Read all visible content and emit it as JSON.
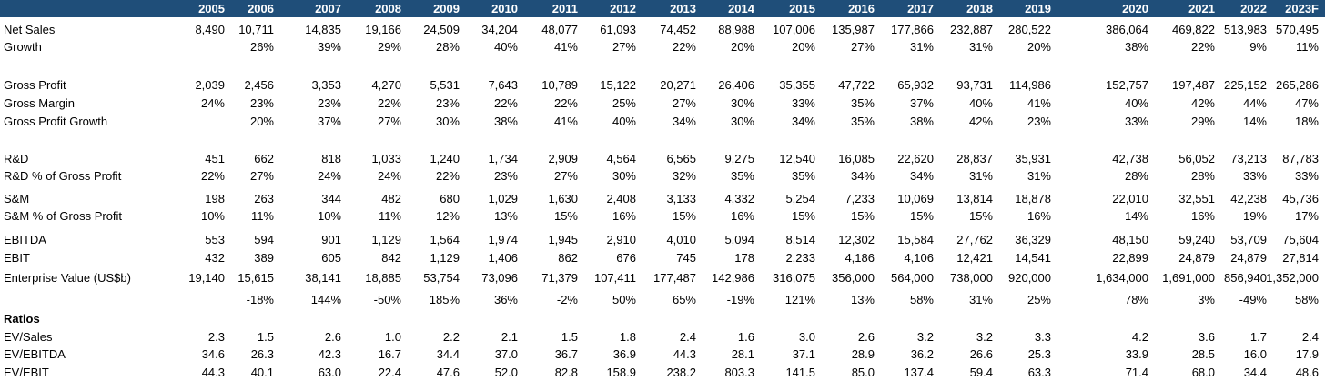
{
  "header": {
    "years": [
      "2005",
      "2006",
      "2007",
      "2008",
      "2009",
      "2010",
      "2011",
      "2012",
      "2013",
      "2014",
      "2015",
      "2016",
      "2017",
      "2018",
      "2019",
      "2020",
      "2021",
      "2022",
      "2023F"
    ]
  },
  "rows": [
    {
      "label": "Net Sales",
      "values": [
        "8,490",
        "10,711",
        "14,835",
        "19,166",
        "24,509",
        "34,204",
        "48,077",
        "61,093",
        "74,452",
        "88,988",
        "107,006",
        "135,987",
        "177,866",
        "232,887",
        "280,522",
        "386,064",
        "469,822",
        "513,983",
        "570,495"
      ]
    },
    {
      "label": "Growth",
      "values": [
        "",
        "26%",
        "39%",
        "29%",
        "28%",
        "40%",
        "41%",
        "27%",
        "22%",
        "20%",
        "20%",
        "27%",
        "31%",
        "31%",
        "20%",
        "38%",
        "22%",
        "9%",
        "11%"
      ]
    },
    {
      "label": "Gross Profit",
      "values": [
        "2,039",
        "2,456",
        "3,353",
        "4,270",
        "5,531",
        "7,643",
        "10,789",
        "15,122",
        "20,271",
        "26,406",
        "35,355",
        "47,722",
        "65,932",
        "93,731",
        "114,986",
        "152,757",
        "197,487",
        "225,152",
        "265,286"
      ]
    },
    {
      "label": "Gross Margin",
      "values": [
        "24%",
        "23%",
        "23%",
        "22%",
        "23%",
        "22%",
        "22%",
        "25%",
        "27%",
        "30%",
        "33%",
        "35%",
        "37%",
        "40%",
        "41%",
        "40%",
        "42%",
        "44%",
        "47%"
      ]
    },
    {
      "label": "Gross Profit Growth",
      "values": [
        "",
        "20%",
        "37%",
        "27%",
        "30%",
        "38%",
        "41%",
        "40%",
        "34%",
        "30%",
        "34%",
        "35%",
        "38%",
        "42%",
        "23%",
        "33%",
        "29%",
        "14%",
        "18%"
      ]
    },
    {
      "label": "R&D",
      "values": [
        "451",
        "662",
        "818",
        "1,033",
        "1,240",
        "1,734",
        "2,909",
        "4,564",
        "6,565",
        "9,275",
        "12,540",
        "16,085",
        "22,620",
        "28,837",
        "35,931",
        "42,738",
        "56,052",
        "73,213",
        "87,783"
      ]
    },
    {
      "label": "R&D % of Gross Profit",
      "values": [
        "22%",
        "27%",
        "24%",
        "24%",
        "22%",
        "23%",
        "27%",
        "30%",
        "32%",
        "35%",
        "35%",
        "34%",
        "34%",
        "31%",
        "31%",
        "28%",
        "28%",
        "33%",
        "33%"
      ]
    },
    {
      "label": "S&M",
      "values": [
        "198",
        "263",
        "344",
        "482",
        "680",
        "1,029",
        "1,630",
        "2,408",
        "3,133",
        "4,332",
        "5,254",
        "7,233",
        "10,069",
        "13,814",
        "18,878",
        "22,010",
        "32,551",
        "42,238",
        "45,736"
      ]
    },
    {
      "label": "S&M % of Gross Profit",
      "values": [
        "10%",
        "11%",
        "10%",
        "11%",
        "12%",
        "13%",
        "15%",
        "16%",
        "15%",
        "16%",
        "15%",
        "15%",
        "15%",
        "15%",
        "16%",
        "14%",
        "16%",
        "19%",
        "17%"
      ]
    },
    {
      "label": "EBITDA",
      "values": [
        "553",
        "594",
        "901",
        "1,129",
        "1,564",
        "1,974",
        "1,945",
        "2,910",
        "4,010",
        "5,094",
        "8,514",
        "12,302",
        "15,584",
        "27,762",
        "36,329",
        "48,150",
        "59,240",
        "53,709",
        "75,604"
      ]
    },
    {
      "label": "EBIT",
      "values": [
        "432",
        "389",
        "605",
        "842",
        "1,129",
        "1,406",
        "862",
        "676",
        "745",
        "178",
        "2,233",
        "4,186",
        "4,106",
        "12,421",
        "14,541",
        "22,899",
        "24,879",
        "24,879",
        "27,814"
      ]
    },
    {
      "label": "Enterprise Value (US$b)",
      "values": [
        "19,140",
        "15,615",
        "38,141",
        "18,885",
        "53,754",
        "73,096",
        "71,379",
        "107,411",
        "177,487",
        "142,986",
        "316,075",
        "356,000",
        "564,000",
        "738,000",
        "920,000",
        "1,634,000",
        "1,691,000",
        "856,940",
        "1,352,000"
      ]
    },
    {
      "label": "",
      "values": [
        "",
        "-18%",
        "144%",
        "-50%",
        "185%",
        "36%",
        "-2%",
        "50%",
        "65%",
        "-19%",
        "121%",
        "13%",
        "58%",
        "31%",
        "25%",
        "78%",
        "3%",
        "-49%",
        "58%"
      ]
    },
    {
      "label": "Ratios",
      "values": [
        "",
        "",
        "",
        "",
        "",
        "",
        "",
        "",
        "",
        "",
        "",
        "",
        "",
        "",
        "",
        "",
        "",
        "",
        ""
      ]
    },
    {
      "label": "EV/Sales",
      "values": [
        "2.3",
        "1.5",
        "2.6",
        "1.0",
        "2.2",
        "2.1",
        "1.5",
        "1.8",
        "2.4",
        "1.6",
        "3.0",
        "2.6",
        "3.2",
        "3.2",
        "3.3",
        "4.2",
        "3.6",
        "1.7",
        "2.4"
      ]
    },
    {
      "label": "EV/EBITDA",
      "values": [
        "34.6",
        "26.3",
        "42.3",
        "16.7",
        "34.4",
        "37.0",
        "36.7",
        "36.9",
        "44.3",
        "28.1",
        "37.1",
        "28.9",
        "36.2",
        "26.6",
        "25.3",
        "33.9",
        "28.5",
        "16.0",
        "17.9"
      ]
    },
    {
      "label": "EV/EBIT",
      "values": [
        "44.3",
        "40.1",
        "63.0",
        "22.4",
        "47.6",
        "52.0",
        "82.8",
        "158.9",
        "238.2",
        "803.3",
        "141.5",
        "85.0",
        "137.4",
        "59.4",
        "63.3",
        "71.4",
        "68.0",
        "34.4",
        "48.6"
      ]
    }
  ]
}
